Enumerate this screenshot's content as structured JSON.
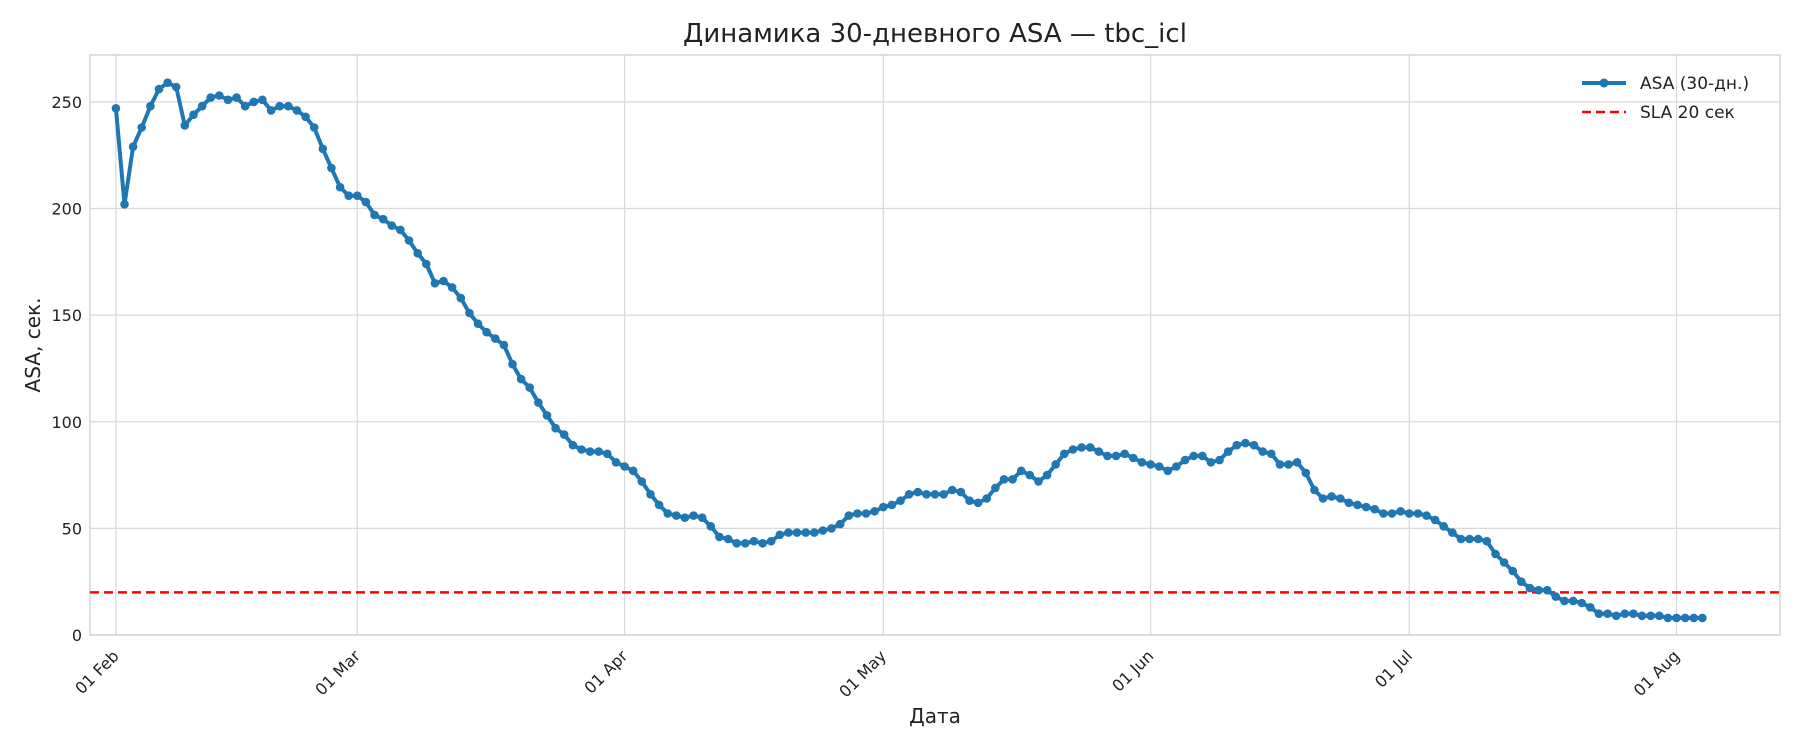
{
  "chart_data": {
    "type": "line",
    "title": "Динамика 30-дневного ASA — tbc_icl",
    "xlabel": "Дата",
    "ylabel": "ASA, сек.",
    "ylim": [
      0,
      272
    ],
    "yticks": [
      0,
      50,
      100,
      150,
      200,
      250
    ],
    "xlim": [
      "2025-01-29",
      "2025-08-13"
    ],
    "xticks": [
      {
        "date": "2025-02-01",
        "label": "01 Feb"
      },
      {
        "date": "2025-03-01",
        "label": "01 Mar"
      },
      {
        "date": "2025-04-01",
        "label": "01 Apr"
      },
      {
        "date": "2025-05-01",
        "label": "01 May"
      },
      {
        "date": "2025-06-01",
        "label": "01 Jun"
      },
      {
        "date": "2025-07-01",
        "label": "01 Jul"
      },
      {
        "date": "2025-08-01",
        "label": "01 Aug"
      }
    ],
    "grid": true,
    "legend_position": "top-right",
    "start_date": "2025-02-01",
    "series": [
      {
        "name": "ASA (30-дн.)",
        "color": "#1f77b4",
        "style": "solid-with-markers",
        "values": [
          247,
          202,
          229,
          238,
          248,
          256,
          259,
          257,
          239,
          244,
          248,
          252,
          253,
          251,
          252,
          248,
          250,
          251,
          246,
          248,
          248,
          246,
          243,
          238,
          228,
          219,
          210,
          206,
          206,
          203,
          197,
          195,
          192,
          190,
          185,
          179,
          174,
          165,
          166,
          163,
          158,
          151,
          146,
          142,
          139,
          136,
          127,
          120,
          116,
          109,
          103,
          97,
          94,
          89,
          87,
          86,
          86,
          85,
          81,
          79,
          77,
          72,
          66,
          61,
          57,
          56,
          55,
          56,
          55,
          51,
          46,
          45,
          43,
          43,
          44,
          43,
          44,
          47,
          48,
          48,
          48,
          48,
          49,
          50,
          52,
          56,
          57,
          57,
          58,
          60,
          61,
          63,
          66,
          67,
          66,
          66,
          66,
          68,
          67,
          63,
          62,
          64,
          69,
          73,
          73,
          77,
          75,
          72,
          75,
          80,
          85,
          87,
          88,
          88,
          86,
          84,
          84,
          85,
          83,
          81,
          80,
          79,
          77,
          79,
          82,
          84,
          84,
          81,
          82,
          86,
          89,
          90,
          89,
          86,
          85,
          80,
          80,
          81,
          76,
          68,
          64,
          65,
          64,
          62,
          61,
          60,
          59,
          57,
          57,
          58,
          57,
          57,
          56,
          54,
          51,
          48,
          45,
          45,
          45,
          44,
          38,
          34,
          30,
          25,
          22,
          21,
          21,
          18,
          16,
          16,
          15,
          13,
          10,
          10,
          9,
          10,
          10,
          9,
          9,
          9,
          8,
          8,
          8,
          8,
          8
        ]
      },
      {
        "name": "SLA 20 сек",
        "color": "#ff0000",
        "style": "dashed",
        "constant": 20
      }
    ]
  }
}
